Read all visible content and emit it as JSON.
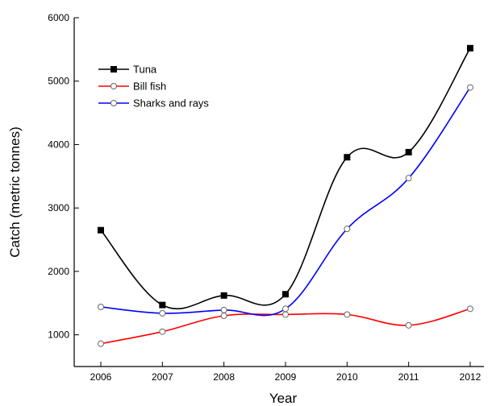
{
  "chart_data": {
    "type": "line",
    "title": "",
    "xlabel": "Year",
    "ylabel": "Catch (metric tonnes)",
    "x": [
      2006,
      2007,
      2008,
      2009,
      2010,
      2011,
      2012
    ],
    "x_tick_labels": [
      "2006",
      "2007",
      "2008",
      "2009",
      "2010",
      "2011",
      "2012"
    ],
    "y_ticks": [
      1000,
      2000,
      3000,
      4000,
      5000,
      6000
    ],
    "y_tick_labels": [
      "1000",
      "2000",
      "3000",
      "4000",
      "5000",
      "6000"
    ],
    "ylim": [
      500,
      6000
    ],
    "grid": false,
    "legend_position": "top-left",
    "series": [
      {
        "name": "Tuna",
        "values": [
          2650,
          1470,
          1620,
          1640,
          3800,
          3880,
          5520
        ],
        "color": "#000000",
        "marker": "filled-square"
      },
      {
        "name": "Bill fish",
        "values": [
          860,
          1050,
          1300,
          1320,
          1320,
          1150,
          1410
        ],
        "color": "#ff0000",
        "marker": "open-circle"
      },
      {
        "name": "Sharks and rays",
        "values": [
          1440,
          1340,
          1390,
          1410,
          2670,
          3470,
          4900
        ],
        "color": "#0000ff",
        "marker": "open-circle"
      }
    ]
  }
}
